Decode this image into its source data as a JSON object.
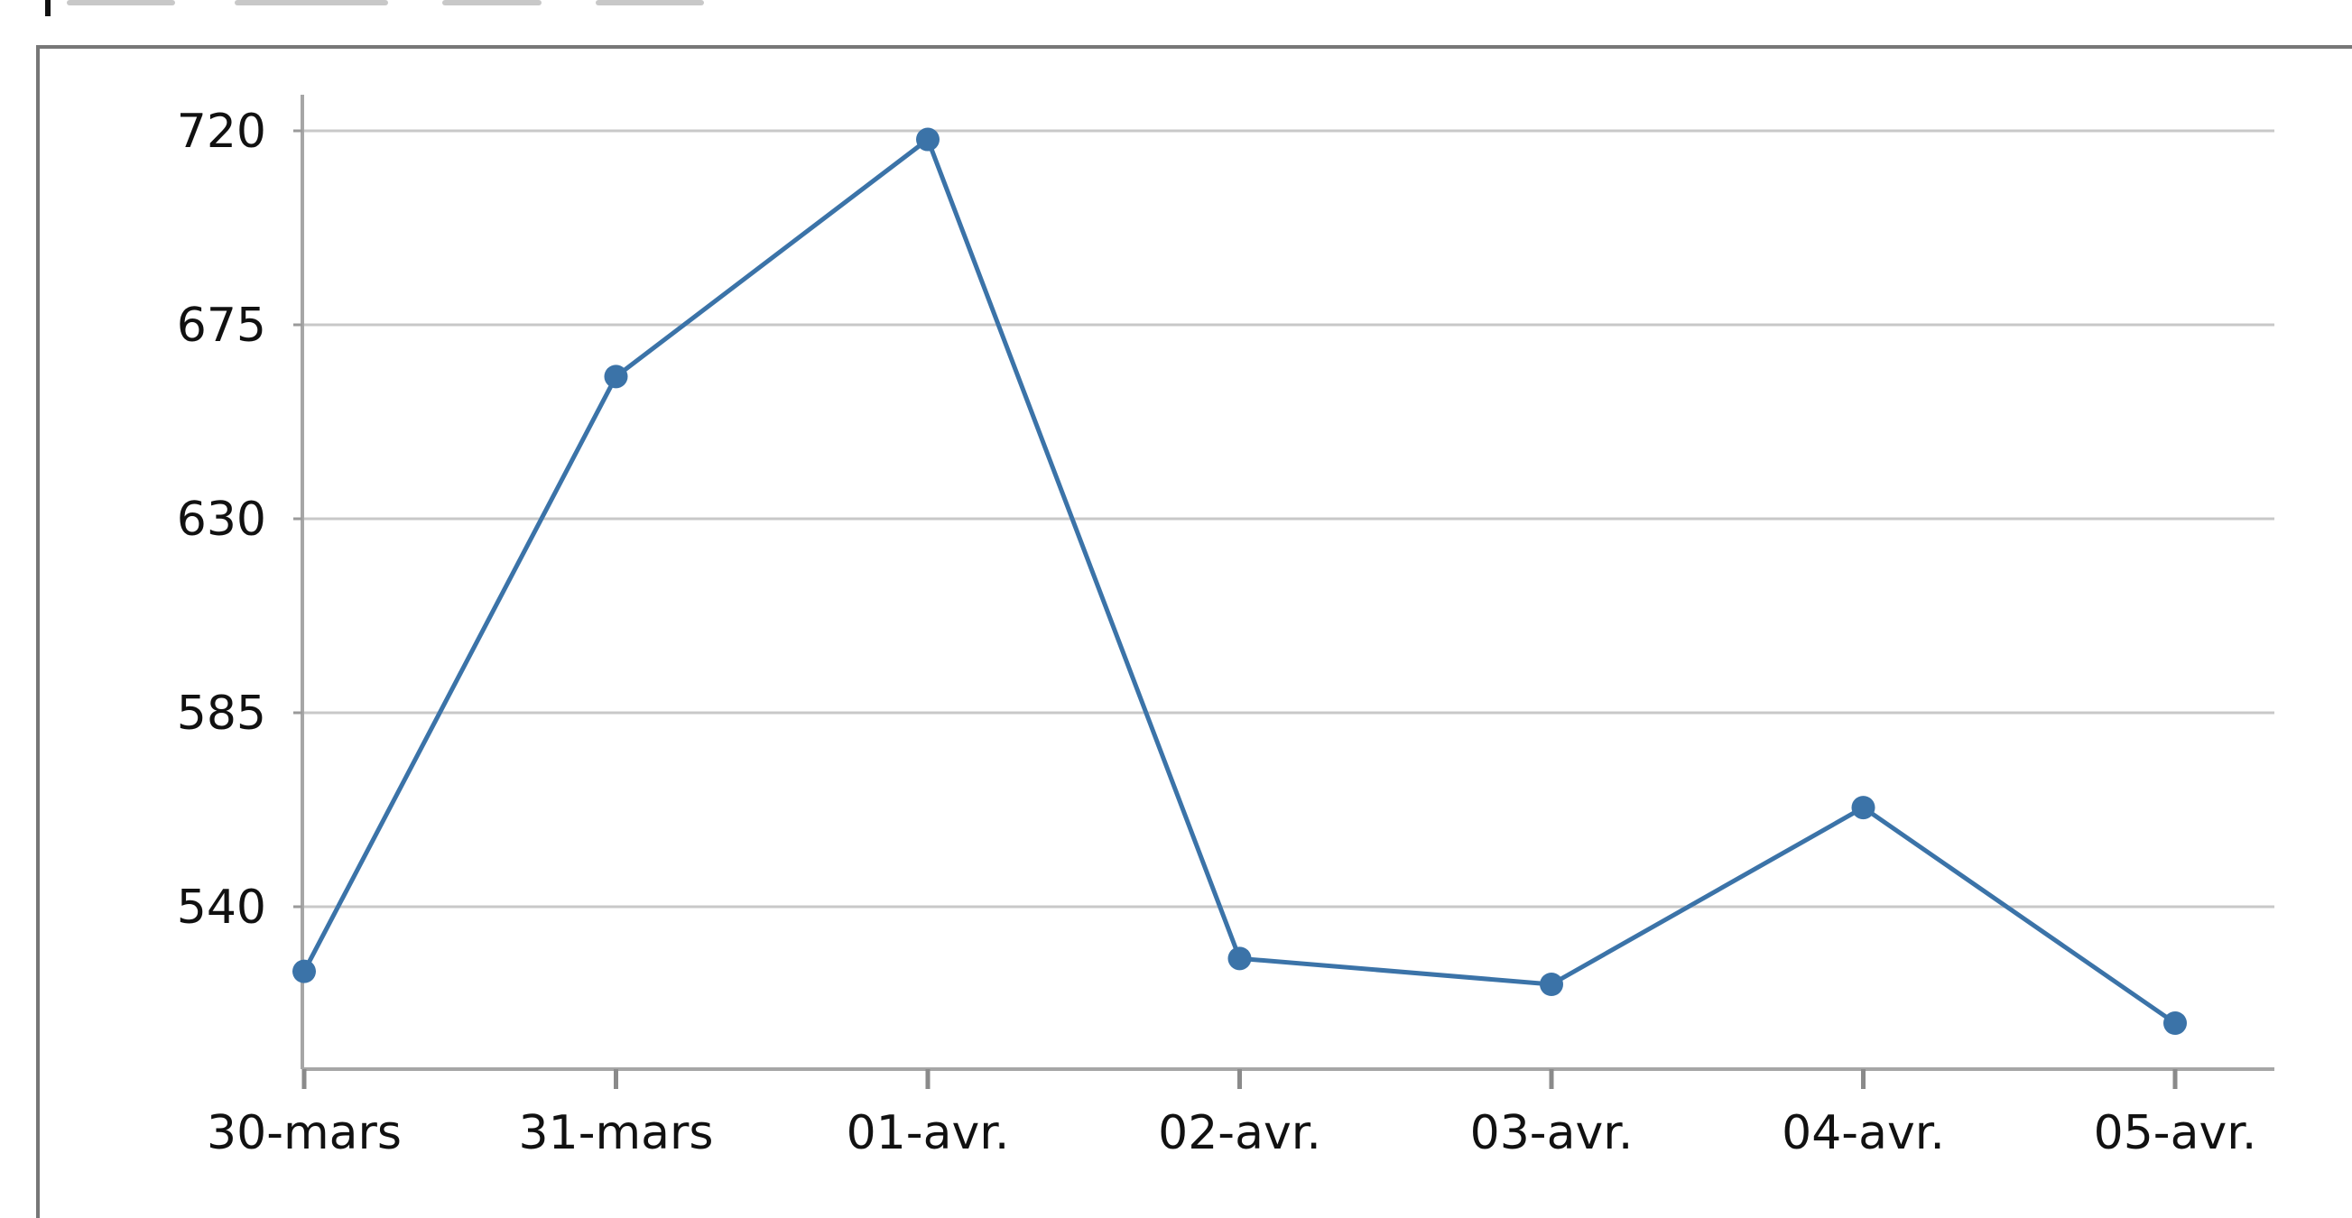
{
  "chart_data": {
    "type": "line",
    "title": "",
    "xlabel": "",
    "ylabel": "",
    "categories": [
      "30-mars",
      "31-mars",
      "01-avr.",
      "02-avr.",
      "03-avr.",
      "04-avr.",
      "05-avr."
    ],
    "series": [
      {
        "values": [
          525,
          663,
          718,
          528,
          522,
          563,
          513
        ],
        "color": "#3b73a8"
      }
    ],
    "y_ticks": [
      540,
      585,
      630,
      675,
      720
    ],
    "ylim": [
      503,
      728
    ],
    "grid": true,
    "legend": "none"
  }
}
